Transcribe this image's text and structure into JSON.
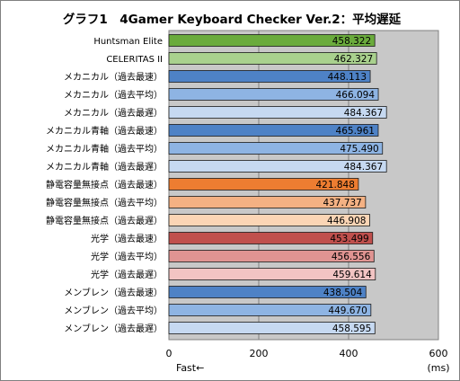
{
  "chart_data": {
    "type": "bar",
    "orientation": "horizontal",
    "title": "グラフ1　4Gamer Keyboard Checker Ver.2：平均遅延",
    "categories": [
      "Huntsman Elite",
      "CELERITAS II",
      "メカニカル（過去最速）",
      "メカニカル（過去平均）",
      "メカニカル（過去最遅）",
      "メカニカル青軸（過去最速）",
      "メカニカル青軸（過去平均）",
      "メカニカル青軸（過去最遅）",
      "静電容量無接点（過去最速）",
      "静電容量無接点（過去平均）",
      "静電容量無接点（過去最遅）",
      "光学（過去最速）",
      "光学（過去平均）",
      "光学（過去最遅）",
      "メンブレン（過去最速）",
      "メンブレン（過去平均）",
      "メンブレン（過去最遅）"
    ],
    "values": [
      458.322,
      462.327,
      448.113,
      466.094,
      484.367,
      465.961,
      475.49,
      484.367,
      421.848,
      437.737,
      446.908,
      453.499,
      456.556,
      459.614,
      438.504,
      449.67,
      458.595
    ],
    "value_labels": [
      "458.322",
      "462.327",
      "448.113",
      "466.094",
      "484.367",
      "465.961",
      "475.490",
      "484.367",
      "421.848",
      "437.737",
      "446.908",
      "453.499",
      "456.556",
      "459.614",
      "438.504",
      "449.670",
      "458.595"
    ],
    "colors": [
      "#6aab3c",
      "#a9d18e",
      "#4e82c6",
      "#8eb4e3",
      "#c6d9f1",
      "#4e82c6",
      "#8eb4e3",
      "#c6d9f1",
      "#ed7d31",
      "#f4b183",
      "#fbd5b5",
      "#c0504d",
      "#e09492",
      "#f2c4c3",
      "#4e82c6",
      "#8eb4e3",
      "#c6d9f1"
    ],
    "xlim": [
      0,
      600
    ],
    "xticks": [
      "0",
      "200",
      "400",
      "600"
    ],
    "x_unit_label": "(ms)",
    "x_note": "Fast←",
    "grid": true,
    "plot_background": "#c8c8c8"
  }
}
